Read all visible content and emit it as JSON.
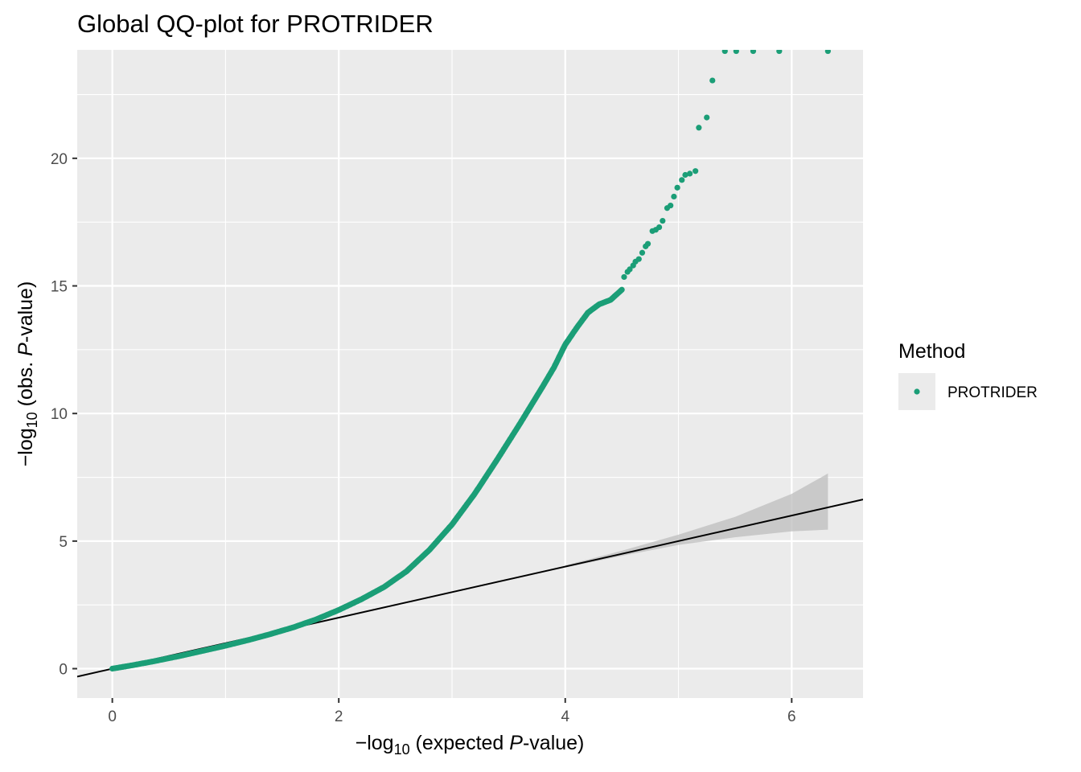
{
  "chart_data": {
    "type": "scatter",
    "title": "Global QQ-plot for PROTRIDER",
    "xlabel": {
      "prefix": "−log",
      "sub": "10",
      "middle": " (expected ",
      "italic": "P",
      "suffix": "-value)"
    },
    "ylabel": {
      "prefix": "−log",
      "sub": "10",
      "middle": " (obs. ",
      "italic": "P",
      "suffix": "-value)"
    },
    "xlim": [
      -0.31,
      6.63
    ],
    "ylim": [
      -1.15,
      24.25
    ],
    "x_ticks": [
      0,
      2,
      4,
      6
    ],
    "x_tick_labels": [
      "0",
      "2",
      "4",
      "6"
    ],
    "y_ticks": [
      0,
      5,
      10,
      15,
      20
    ],
    "y_tick_labels": [
      "0",
      "5",
      "10",
      "15",
      "20"
    ],
    "grid": true,
    "legend": {
      "title": "Method",
      "position": "right",
      "entries": [
        {
          "label": "PROTRIDER",
          "color": "#1b9e77"
        }
      ]
    },
    "series": [
      {
        "name": "PROTRIDER",
        "color": "#1b9e77",
        "curve": [
          [
            0.0,
            0.0
          ],
          [
            0.2,
            0.15
          ],
          [
            0.4,
            0.32
          ],
          [
            0.6,
            0.5
          ],
          [
            0.8,
            0.7
          ],
          [
            1.0,
            0.9
          ],
          [
            1.2,
            1.12
          ],
          [
            1.4,
            1.36
          ],
          [
            1.6,
            1.62
          ],
          [
            1.8,
            1.93
          ],
          [
            2.0,
            2.3
          ],
          [
            2.2,
            2.72
          ],
          [
            2.4,
            3.2
          ],
          [
            2.6,
            3.82
          ],
          [
            2.8,
            4.65
          ],
          [
            3.0,
            5.65
          ],
          [
            3.2,
            6.85
          ],
          [
            3.4,
            8.2
          ],
          [
            3.6,
            9.6
          ],
          [
            3.8,
            11.05
          ],
          [
            3.9,
            11.8
          ],
          [
            4.0,
            12.7
          ],
          [
            4.1,
            13.35
          ],
          [
            4.2,
            13.95
          ],
          [
            4.3,
            14.28
          ],
          [
            4.4,
            14.45
          ],
          [
            4.45,
            14.65
          ],
          [
            4.5,
            14.85
          ]
        ],
        "points": [
          [
            4.52,
            15.35
          ],
          [
            4.55,
            15.55
          ],
          [
            4.57,
            15.65
          ],
          [
            4.6,
            15.8
          ],
          [
            4.62,
            15.95
          ],
          [
            4.65,
            16.05
          ],
          [
            4.68,
            16.3
          ],
          [
            4.71,
            16.55
          ],
          [
            4.73,
            16.65
          ],
          [
            4.77,
            17.15
          ],
          [
            4.8,
            17.2
          ],
          [
            4.83,
            17.3
          ],
          [
            4.86,
            17.55
          ],
          [
            4.9,
            18.05
          ],
          [
            4.93,
            18.15
          ],
          [
            4.96,
            18.5
          ],
          [
            4.99,
            18.85
          ],
          [
            5.03,
            19.15
          ],
          [
            5.06,
            19.35
          ],
          [
            5.1,
            19.4
          ],
          [
            5.15,
            19.5
          ],
          [
            5.18,
            21.2
          ],
          [
            5.25,
            21.6
          ],
          [
            5.3,
            23.05
          ],
          [
            5.41,
            24.2
          ],
          [
            5.51,
            24.2
          ],
          [
            5.66,
            24.2
          ],
          [
            5.89,
            24.2
          ],
          [
            6.32,
            24.2
          ]
        ]
      }
    ],
    "reference_line": {
      "slope": 1,
      "intercept": 0,
      "color": "#000000"
    },
    "confidence_band": {
      "color": "#bebebe",
      "x": [
        4.0,
        4.5,
        5.0,
        5.5,
        6.0,
        6.32
      ],
      "lower": [
        3.96,
        4.42,
        4.85,
        5.15,
        5.38,
        5.45
      ],
      "upper": [
        4.05,
        4.62,
        5.25,
        5.95,
        6.85,
        7.65
      ]
    }
  }
}
